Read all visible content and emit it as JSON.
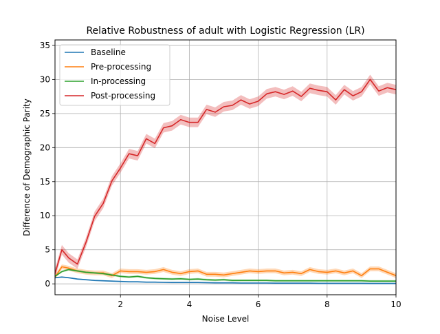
{
  "chart_data": {
    "type": "line",
    "title": "Relative Robustness of adult with Logistic Regression (LR)",
    "xlabel": "Noise Level",
    "ylabel": "Difference of Demographic Parity",
    "xlim": [
      0.1,
      10
    ],
    "ylim": [
      -1.6,
      35.8
    ],
    "xticks": [
      2,
      4,
      6,
      8,
      10
    ],
    "yticks": [
      0,
      5,
      10,
      15,
      20,
      25,
      30,
      35
    ],
    "grid": true,
    "legend_position": "top-left",
    "x": [
      0.1,
      0.3,
      0.5,
      0.75,
      1.0,
      1.25,
      1.5,
      1.75,
      2.0,
      2.25,
      2.5,
      2.75,
      3.0,
      3.25,
      3.5,
      3.75,
      4.0,
      4.25,
      4.5,
      4.75,
      5.0,
      5.25,
      5.5,
      5.75,
      6.0,
      6.25,
      6.5,
      6.75,
      7.0,
      7.25,
      7.5,
      7.75,
      8.0,
      8.25,
      8.5,
      8.75,
      9.0,
      9.25,
      9.5,
      9.75,
      10.0
    ],
    "series": [
      {
        "name": "Baseline",
        "color": "#1f77b4",
        "values": [
          0.9,
          1.0,
          0.9,
          0.7,
          0.6,
          0.5,
          0.45,
          0.4,
          0.35,
          0.3,
          0.3,
          0.25,
          0.25,
          0.22,
          0.2,
          0.2,
          0.2,
          0.2,
          0.18,
          0.15,
          0.15,
          0.15,
          0.12,
          0.12,
          0.12,
          0.12,
          0.1,
          0.1,
          0.1,
          0.1,
          0.1,
          0.08,
          0.08,
          0.08,
          0.08,
          0.08,
          0.08,
          0.06,
          0.06,
          0.06,
          0.06
        ],
        "band": 0.1
      },
      {
        "name": "Pre-processing",
        "color": "#ff7f0e",
        "values": [
          1.0,
          2.5,
          2.3,
          1.9,
          1.7,
          1.6,
          1.6,
          1.2,
          1.9,
          1.8,
          1.8,
          1.7,
          1.8,
          2.1,
          1.7,
          1.5,
          1.8,
          1.9,
          1.4,
          1.4,
          1.3,
          1.5,
          1.7,
          1.9,
          1.8,
          1.9,
          1.9,
          1.6,
          1.7,
          1.5,
          2.1,
          1.8,
          1.7,
          1.9,
          1.6,
          1.9,
          1.2,
          2.2,
          2.2,
          1.7,
          1.2
        ],
        "band": 0.35
      },
      {
        "name": "In-processing",
        "color": "#2ca02c",
        "values": [
          1.1,
          1.8,
          2.1,
          1.9,
          1.7,
          1.6,
          1.5,
          1.3,
          1.1,
          1.0,
          1.1,
          0.9,
          0.8,
          0.75,
          0.7,
          0.75,
          0.65,
          0.7,
          0.6,
          0.55,
          0.6,
          0.5,
          0.5,
          0.5,
          0.5,
          0.5,
          0.45,
          0.45,
          0.45,
          0.45,
          0.45,
          0.45,
          0.45,
          0.45,
          0.45,
          0.45,
          0.45,
          0.4,
          0.4,
          0.4,
          0.4
        ],
        "band": 0.15
      },
      {
        "name": "Post-processing",
        "color": "#d62728",
        "values": [
          1.5,
          5.0,
          3.8,
          2.9,
          6.1,
          9.9,
          11.8,
          15.1,
          17.0,
          19.1,
          18.8,
          21.3,
          20.6,
          22.9,
          23.2,
          24.1,
          23.7,
          23.7,
          25.6,
          25.2,
          26.0,
          26.2,
          27.0,
          26.4,
          26.8,
          27.9,
          28.2,
          27.8,
          28.3,
          27.5,
          28.7,
          28.4,
          28.2,
          27.0,
          28.5,
          27.6,
          28.2,
          30.0,
          28.3,
          28.8,
          28.5
        ],
        "band": 0.7
      }
    ]
  }
}
